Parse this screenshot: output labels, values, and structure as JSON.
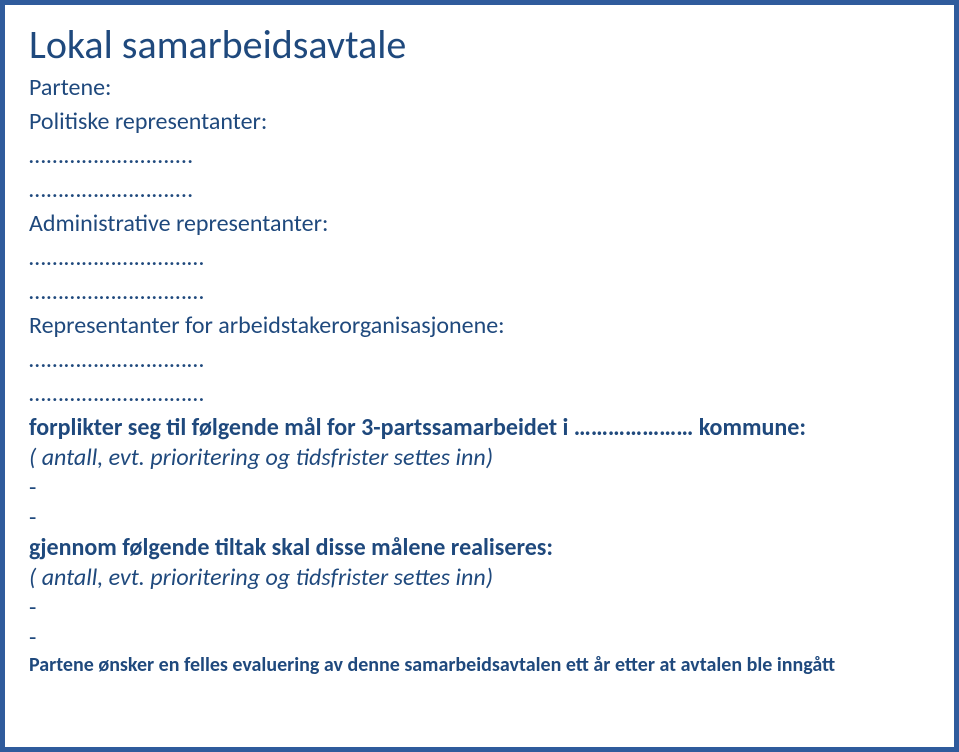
{
  "title": "Lokal samarbeidsavtale",
  "section_partene": "Partene:",
  "section_politiske": "Politiske representanter:",
  "leader_dot": "……………………….",
  "section_admin": "Administrative representanter:",
  "leader_line1": "…………………………",
  "section_arbeidstaker": "Representanter for arbeidstakerorganisasjonene:",
  "forplikter_line": "forplikter seg til følgende mål for 3-partssamarbeidet i …………………   kommune:",
  "antall_line": "( antall, evt. prioritering og tidsfrister settes inn)",
  "dash": "-",
  "gjennom_line": "gjennom følgende tiltak skal disse målene realiseres:",
  "footer_line": "Partene ønsker en felles evaluering av denne samarbeidsavtalen ett år etter at avtalen ble inngått",
  "colors": {
    "border": "#2f5b9c",
    "text": "#1f497d",
    "background": "#ffffff"
  },
  "fontsizes": {
    "title": 40,
    "subhead": 24,
    "body": 24,
    "footer": 20
  }
}
